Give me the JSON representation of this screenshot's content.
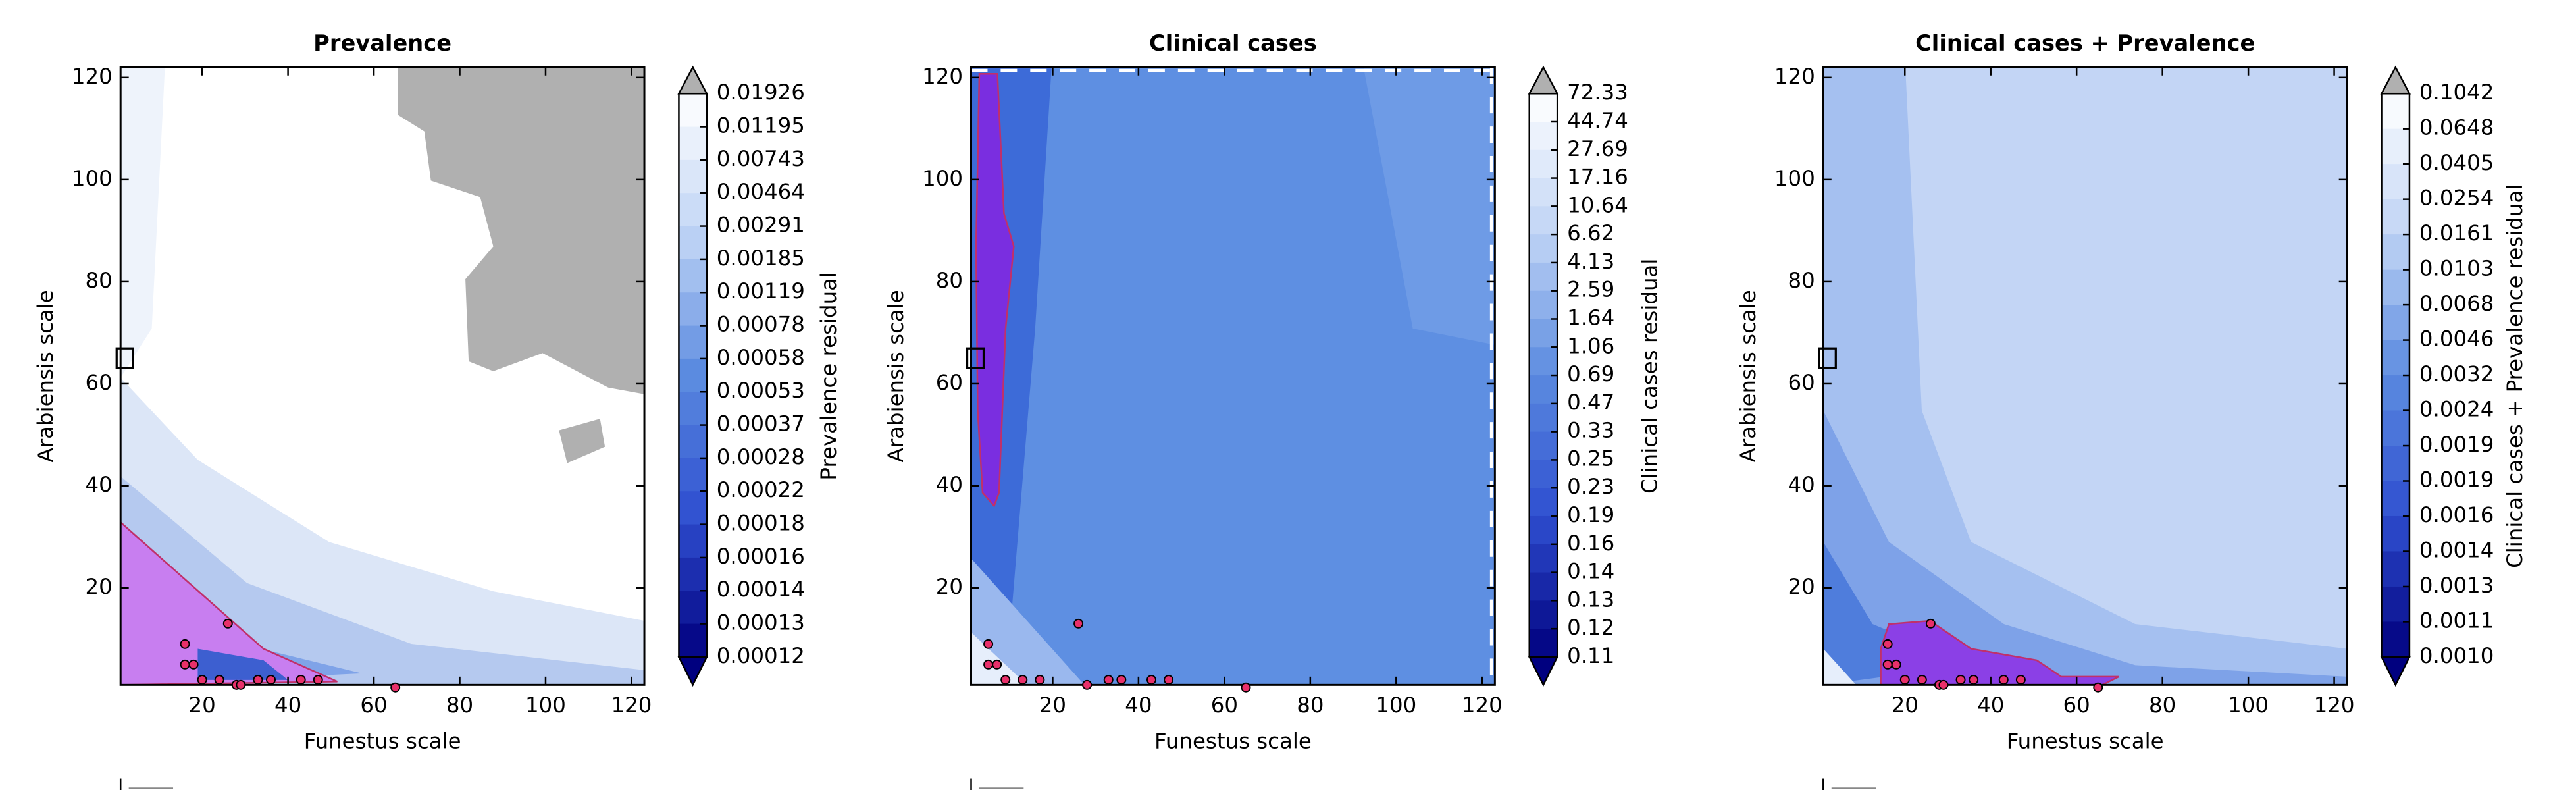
{
  "chart_data": [
    {
      "type": "contour",
      "title": "Prevalence",
      "xlabel": "Funestus scale",
      "ylabel": "Arabiensis scale",
      "xlim": [
        1,
        123
      ],
      "ylim": [
        1,
        122
      ],
      "xticks": [
        20,
        40,
        60,
        80,
        100,
        120
      ],
      "yticks": [
        20,
        40,
        60,
        80,
        100,
        120
      ],
      "colorbar": {
        "label": "Prevalence residual",
        "extend": "both",
        "over_color": "#b0b0b0",
        "cmap_colors": [
          "#00007f",
          "#2f4fd0",
          "#5b8be0",
          "#c0d4f5",
          "#ffffff"
        ],
        "ticks": [
          0.01926,
          0.01195,
          0.00743,
          0.00464,
          0.00291,
          0.00185,
          0.00119,
          0.00078,
          0.00058,
          0.00053,
          0.00037,
          0.00028,
          0.00022,
          0.00018,
          0.00016,
          0.00014,
          0.00013,
          0.00012
        ]
      },
      "points": {
        "color": "#e8306a",
        "x": [
          16,
          16,
          18,
          20,
          24,
          26,
          28,
          29,
          33,
          36,
          43,
          47,
          65
        ],
        "y": [
          9,
          5,
          5,
          2,
          2,
          13,
          1,
          1,
          2,
          2,
          2,
          2,
          0.5
        ]
      },
      "reference_point": {
        "x": 2,
        "y": 65
      }
    },
    {
      "type": "contour",
      "title": "Clinical cases",
      "xlabel": "Funestus scale",
      "ylabel": "Arabiensis scale",
      "xlim": [
        1,
        123
      ],
      "ylim": [
        1,
        122
      ],
      "xticks": [
        20,
        40,
        60,
        80,
        100,
        120
      ],
      "yticks": [
        20,
        40,
        60,
        80,
        100,
        120
      ],
      "colorbar": {
        "label": "Clinical cases residual",
        "extend": "both",
        "over_color": "#b0b0b0",
        "cmap_colors": [
          "#00007f",
          "#2f4fd0",
          "#5b8be0",
          "#c0d4f5",
          "#ffffff"
        ],
        "ticks": [
          72.33,
          44.74,
          27.69,
          17.16,
          10.64,
          6.62,
          4.13,
          2.59,
          1.64,
          1.06,
          0.69,
          0.47,
          0.33,
          0.25,
          0.23,
          0.19,
          0.16,
          0.14,
          0.13,
          0.12,
          0.11
        ]
      },
      "points": {
        "color": "#e8306a",
        "x": [
          5,
          5,
          7,
          9,
          13,
          17,
          26,
          28,
          33,
          36,
          43,
          47,
          65
        ],
        "y": [
          9,
          5,
          5,
          2,
          2,
          2,
          13,
          1,
          2,
          2,
          2,
          2,
          0.5
        ]
      },
      "reference_point": {
        "x": 2,
        "y": 65
      }
    },
    {
      "type": "contour",
      "title": "Clinical cases + Prevalence",
      "xlabel": "Funestus scale",
      "ylabel": "Arabiensis scale",
      "xlim": [
        1,
        123
      ],
      "ylim": [
        1,
        122
      ],
      "xticks": [
        20,
        40,
        60,
        80,
        100,
        120
      ],
      "yticks": [
        20,
        40,
        60,
        80,
        100,
        120
      ],
      "colorbar": {
        "label": "Clinical cases + Prevalence residual",
        "extend": "both",
        "over_color": "#b0b0b0",
        "cmap_colors": [
          "#00007f",
          "#2f4fd0",
          "#5b8be0",
          "#c0d4f5",
          "#ffffff"
        ],
        "ticks": [
          0.1042,
          0.0648,
          0.0405,
          0.0254,
          0.0161,
          0.0103,
          0.0068,
          0.0046,
          0.0032,
          0.0024,
          0.0019,
          0.0019,
          0.0016,
          0.0014,
          0.0013,
          0.0011,
          {
            "value": 0.001,
            "label": "0.0010"
          }
        ]
      },
      "points": {
        "color": "#e8306a",
        "x": [
          16,
          16,
          18,
          20,
          24,
          26,
          28,
          29,
          33,
          36,
          43,
          47,
          65
        ],
        "y": [
          9,
          5,
          5,
          2,
          2,
          13,
          1,
          1,
          2,
          2,
          2,
          2,
          0.5
        ]
      },
      "reference_point": {
        "x": 2,
        "y": 65
      }
    }
  ]
}
